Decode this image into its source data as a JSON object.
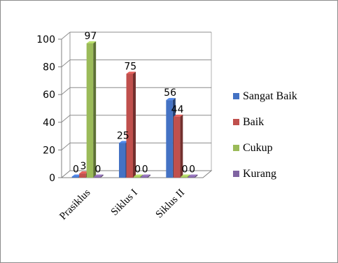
{
  "chart_data": {
    "type": "bar",
    "style": "3d-clustered-column",
    "categories": [
      "Prasiklus",
      "Siklus I",
      "Siklus II"
    ],
    "series": [
      {
        "name": "Sangat Baik",
        "values": [
          0,
          25,
          56
        ],
        "labels": [
          "0",
          "25",
          "56"
        ],
        "color": "#4472c4"
      },
      {
        "name": "Baik",
        "values": [
          3,
          75,
          44
        ],
        "labels": [
          "3",
          "75",
          "44"
        ],
        "color": "#c0504d"
      },
      {
        "name": "Cukup",
        "values": [
          97,
          0,
          0
        ],
        "labels": [
          "97",
          "0",
          "0"
        ],
        "color": "#9bbb59"
      },
      {
        "name": "Kurang",
        "values": [
          0,
          0,
          0
        ],
        "labels": [
          "0",
          "0",
          "0"
        ],
        "color": "#8064a2"
      }
    ],
    "y_ticks": [
      "0",
      "20",
      "40",
      "60",
      "80",
      "100"
    ],
    "ylim": [
      0,
      100
    ],
    "grid": true,
    "legend_position": "right",
    "title": "",
    "xlabel": "",
    "ylabel": ""
  }
}
